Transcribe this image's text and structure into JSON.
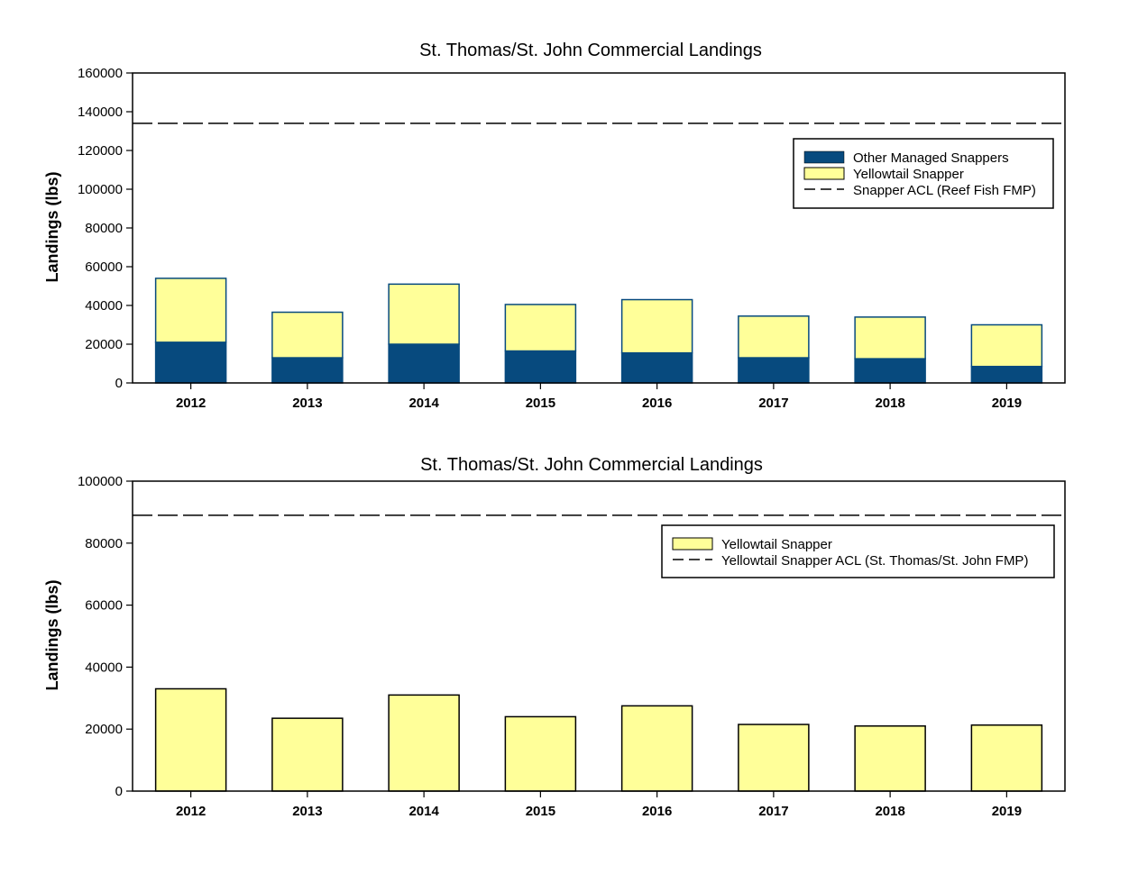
{
  "colors": {
    "other_managed": "#074a7e",
    "yellowtail": "#ffff99",
    "bar_stroke_top": "#074a7e",
    "bar_stroke_bottom": "#000000"
  },
  "chart_data": [
    {
      "type": "bar",
      "stacked": true,
      "title": "St. Thomas/St. John Commercial Landings",
      "xlabel": "",
      "ylabel": "Landings (lbs)",
      "ylim": [
        0,
        160000
      ],
      "yticks": [
        "0",
        "20000",
        "40000",
        "60000",
        "80000",
        "100000",
        "120000",
        "140000",
        "160000"
      ],
      "categories": [
        "2012",
        "2013",
        "2014",
        "2015",
        "2016",
        "2017",
        "2018",
        "2019"
      ],
      "series": [
        {
          "name": "Other Managed Snappers",
          "values": [
            21000,
            13000,
            20000,
            16500,
            15500,
            13000,
            12500,
            8500
          ]
        },
        {
          "name": "Yellowtail Snapper",
          "values": [
            33000,
            23500,
            31000,
            24000,
            27500,
            21500,
            21500,
            21500
          ]
        }
      ],
      "reference_line": {
        "name": "Snapper ACL (Reef Fish FMP)",
        "value": 134000
      },
      "legend": {
        "position": "top-right",
        "entries": [
          "Other Managed Snappers",
          "Yellowtail Snapper",
          "Snapper ACL (Reef Fish FMP)"
        ]
      }
    },
    {
      "type": "bar",
      "stacked": false,
      "title": "St. Thomas/St. John Commercial Landings",
      "xlabel": "",
      "ylabel": "Landings (lbs)",
      "ylim": [
        0,
        100000
      ],
      "yticks": [
        "0",
        "20000",
        "40000",
        "60000",
        "80000",
        "100000"
      ],
      "categories": [
        "2012",
        "2013",
        "2014",
        "2015",
        "2016",
        "2017",
        "2018",
        "2019"
      ],
      "series": [
        {
          "name": "Yellowtail Snapper",
          "values": [
            33000,
            23500,
            31000,
            24000,
            27500,
            21500,
            21000,
            21300
          ]
        }
      ],
      "reference_line": {
        "name": "Yellowtail Snapper ACL (St. Thomas/St. John FMP)",
        "value": 89000
      },
      "legend": {
        "position": "top-right",
        "entries": [
          "Yellowtail Snapper",
          "Yellowtail Snapper ACL (St. Thomas/St. John FMP)"
        ]
      }
    }
  ]
}
